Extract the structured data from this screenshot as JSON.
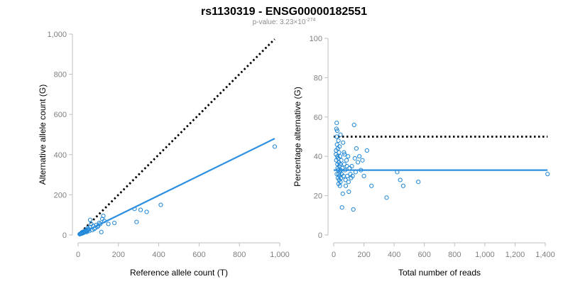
{
  "title": "rs1130319 - ENSG00000182551",
  "subtitle": {
    "prefix": "p-value: 3.23×10",
    "exponent": "-274"
  },
  "colors": {
    "points": "#1f86d6",
    "fit_line": "#2d8fe0",
    "reference_line": "#000000",
    "axis": "#bfbfbf",
    "tick_text": "#7f7f7f"
  },
  "chart_data": [
    {
      "type": "scatter",
      "xlabel": "Reference allele count (T)",
      "ylabel": "Alternative allele count (G)",
      "xlim": [
        0,
        1000
      ],
      "ylim": [
        0,
        1000
      ],
      "x_ticks": [
        0,
        200,
        400,
        600,
        800,
        1000
      ],
      "x_tick_labels": [
        "0",
        "200",
        "400",
        "600",
        "800",
        "1,000"
      ],
      "y_ticks": [
        0,
        200,
        400,
        600,
        800,
        1000
      ],
      "y_tick_labels": [
        "0",
        "200",
        "400",
        "600",
        "800",
        "1,000"
      ],
      "grid": false,
      "reference_line": {
        "style": "dotted",
        "x": [
          0,
          975
        ],
        "y": [
          0,
          975
        ]
      },
      "fit_line": {
        "style": "solid",
        "x": [
          0,
          975
        ],
        "y": [
          0,
          480
        ]
      },
      "points": [
        [
          975,
          440
        ],
        [
          410,
          150
        ],
        [
          340,
          115
        ],
        [
          310,
          125
        ],
        [
          290,
          65
        ],
        [
          280,
          130
        ],
        [
          180,
          60
        ],
        [
          150,
          55
        ],
        [
          130,
          70
        ],
        [
          125,
          95
        ],
        [
          120,
          80
        ],
        [
          115,
          15
        ],
        [
          110,
          55
        ],
        [
          105,
          60
        ],
        [
          100,
          45
        ],
        [
          95,
          40
        ],
        [
          90,
          50
        ],
        [
          85,
          35
        ],
        [
          80,
          30
        ],
        [
          75,
          45
        ],
        [
          70,
          25
        ],
        [
          65,
          55
        ],
        [
          60,
          75
        ],
        [
          58,
          40
        ],
        [
          55,
          20
        ],
        [
          52,
          30
        ],
        [
          50,
          25
        ],
        [
          48,
          35
        ],
        [
          45,
          20
        ],
        [
          42,
          15
        ],
        [
          40,
          25
        ],
        [
          38,
          18
        ],
        [
          35,
          20
        ],
        [
          32,
          15
        ],
        [
          30,
          18
        ],
        [
          28,
          12
        ],
        [
          25,
          10
        ],
        [
          22,
          15
        ],
        [
          20,
          8
        ],
        [
          18,
          12
        ],
        [
          15,
          8
        ],
        [
          12,
          6
        ],
        [
          10,
          5
        ],
        [
          8,
          4
        ]
      ]
    },
    {
      "type": "scatter",
      "xlabel": "Total number of reads",
      "ylabel": "Percentage alternative (G)",
      "xlim": [
        0,
        1400
      ],
      "ylim": [
        0,
        100
      ],
      "x_ticks": [
        0,
        200,
        400,
        600,
        800,
        1000,
        1200,
        1400
      ],
      "x_tick_labels": [
        "0",
        "200",
        "400",
        "600",
        "800",
        "1,000",
        "1,200",
        "1,400"
      ],
      "y_ticks": [
        0,
        20,
        40,
        60,
        80,
        100
      ],
      "y_tick_labels": [
        "0",
        "20",
        "40",
        "60",
        "80",
        "100"
      ],
      "grid": false,
      "reference_line": {
        "style": "dotted",
        "x": [
          0,
          1415
        ],
        "y": [
          50,
          50
        ]
      },
      "fit_line": {
        "style": "solid",
        "x": [
          0,
          1415
        ],
        "y": [
          33,
          33
        ]
      },
      "points": [
        [
          1415,
          31
        ],
        [
          560,
          27
        ],
        [
          460,
          25
        ],
        [
          440,
          28
        ],
        [
          420,
          32
        ],
        [
          350,
          19
        ],
        [
          250,
          25
        ],
        [
          220,
          43
        ],
        [
          200,
          30
        ],
        [
          190,
          38
        ],
        [
          180,
          33
        ],
        [
          170,
          40
        ],
        [
          160,
          37
        ],
        [
          150,
          44
        ],
        [
          145,
          32
        ],
        [
          140,
          39
        ],
        [
          135,
          56
        ],
        [
          130,
          13
        ],
        [
          125,
          30
        ],
        [
          120,
          35
        ],
        [
          115,
          29
        ],
        [
          110,
          31
        ],
        [
          105,
          34
        ],
        [
          100,
          22
        ],
        [
          98,
          27
        ],
        [
          95,
          40
        ],
        [
          90,
          30
        ],
        [
          88,
          35
        ],
        [
          85,
          38
        ],
        [
          80,
          25
        ],
        [
          78,
          28
        ],
        [
          75,
          33
        ],
        [
          72,
          41
        ],
        [
          70,
          36
        ],
        [
          68,
          42
        ],
        [
          65,
          30
        ],
        [
          62,
          47
        ],
        [
          60,
          21
        ],
        [
          58,
          34
        ],
        [
          55,
          14
        ],
        [
          52,
          31
        ],
        [
          50,
          38
        ],
        [
          48,
          29
        ],
        [
          46,
          33
        ],
        [
          45,
          51
        ],
        [
          44,
          27
        ],
        [
          43,
          36
        ],
        [
          42,
          40
        ],
        [
          41,
          25
        ],
        [
          40,
          32
        ],
        [
          39,
          45
        ],
        [
          38,
          30
        ],
        [
          37,
          35
        ],
        [
          36,
          28
        ],
        [
          35,
          42
        ],
        [
          34,
          37
        ],
        [
          33,
          31
        ],
        [
          32,
          26
        ],
        [
          31,
          48
        ],
        [
          30,
          33
        ],
        [
          29,
          39
        ],
        [
          28,
          29
        ],
        [
          27,
          44
        ],
        [
          26,
          34
        ],
        [
          25,
          36
        ],
        [
          24,
          40
        ],
        [
          23,
          53
        ],
        [
          22,
          46
        ],
        [
          21,
          31
        ],
        [
          20,
          57
        ],
        [
          19,
          50
        ],
        [
          18,
          54
        ],
        [
          17,
          38
        ],
        [
          16,
          43
        ],
        [
          15,
          41
        ]
      ]
    }
  ]
}
